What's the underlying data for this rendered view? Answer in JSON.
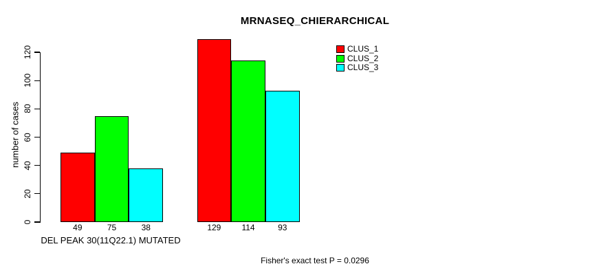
{
  "chart_data": {
    "type": "bar",
    "title": "MRNASEQ_CHIERARCHICAL",
    "ylabel": "number of cases",
    "xlabel": "DEL PEAK 30(11Q22.1) MUTATED",
    "annotation": "Fisher's exact test P = 0.0296",
    "ylim": [
      0,
      120
    ],
    "yticks": [
      0,
      20,
      40,
      60,
      80,
      100,
      120
    ],
    "categories": [
      "DEL PEAK 30(11Q22.1) MUTATED",
      ""
    ],
    "series": [
      {
        "name": "CLUS_1",
        "color": "#ff0000",
        "values": [
          49,
          129
        ]
      },
      {
        "name": "CLUS_2",
        "color": "#00ff00",
        "values": [
          75,
          114
        ]
      },
      {
        "name": "CLUS_3",
        "color": "#00ffff",
        "values": [
          38,
          93
        ]
      }
    ],
    "bar_value_labels_visible": true,
    "legend": {
      "position": "top-right",
      "entries": [
        "CLUS_1",
        "CLUS_2",
        "CLUS_3"
      ]
    },
    "grid": false,
    "bar_border_color": "#000000",
    "background_color": "#ffffff",
    "text_color": "#000000"
  }
}
